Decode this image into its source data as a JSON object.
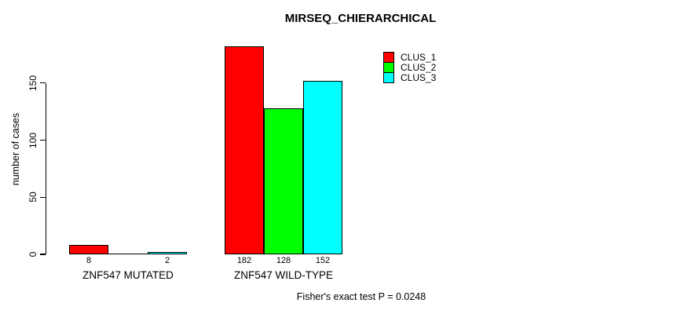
{
  "chart_data": {
    "type": "bar",
    "title": "MIRSEQ_CHIERARCHICAL",
    "ylabel": "number of cases",
    "xlabel": "",
    "categories": [
      "ZNF547 MUTATED",
      "ZNF547 WILD-TYPE"
    ],
    "series": [
      {
        "name": "CLUS_1",
        "color": "#ff0000",
        "values": [
          8,
          182
        ]
      },
      {
        "name": "CLUS_2",
        "color": "#00ff00",
        "values": [
          0,
          128
        ]
      },
      {
        "name": "CLUS_3",
        "color": "#00ffff",
        "values": [
          2,
          152
        ]
      }
    ],
    "y_ticks": [
      0,
      50,
      100,
      150
    ],
    "ylim": [
      0,
      190
    ],
    "grid": false,
    "legend_position": "top-right",
    "bar_value_labels": [
      [
        "8",
        null,
        "2"
      ],
      [
        "182",
        "128",
        "152"
      ]
    ],
    "annotation": "Fisher's exact test P = 0.0248"
  }
}
